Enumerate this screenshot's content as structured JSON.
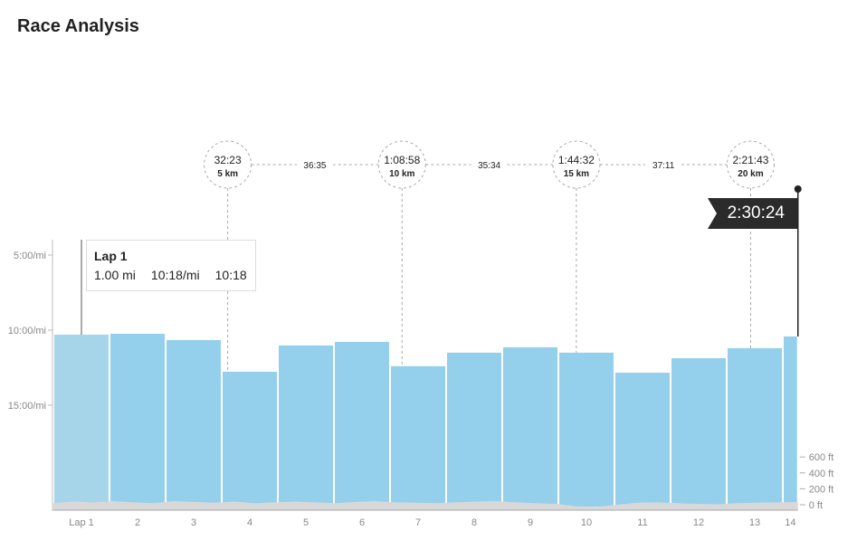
{
  "title": "Race Analysis",
  "tooltip": {
    "title": "Lap 1",
    "distance": "1.00 mi",
    "pace": "10:18/mi",
    "time": "10:18"
  },
  "finish_time": "2:30:24",
  "splits": [
    {
      "time": "32:23",
      "label": "5 km",
      "mi": 3.107
    },
    {
      "time": "1:08:58",
      "label": "10 km",
      "mi": 6.214
    },
    {
      "time": "1:44:32",
      "label": "15 km",
      "mi": 9.321
    },
    {
      "time": "2:21:43",
      "label": "20 km",
      "mi": 12.427
    }
  ],
  "segments": [
    "36:35",
    "35:34",
    "37:11"
  ],
  "chart_data": {
    "type": "bar",
    "title": "Race Analysis",
    "categories": [
      "Lap 1",
      "2",
      "3",
      "4",
      "5",
      "6",
      "7",
      "8",
      "9",
      "10",
      "11",
      "12",
      "13",
      "14"
    ],
    "lap_distance_mi": [
      1,
      1,
      1,
      1,
      1,
      1,
      1,
      1,
      1,
      1,
      1,
      1,
      1,
      0.27
    ],
    "pace_min_per_mi": [
      10.3,
      10.24,
      10.66,
      12.77,
      11.02,
      10.78,
      12.4,
      11.5,
      11.14,
      11.5,
      12.83,
      11.87,
      11.2,
      10.42
    ],
    "y_ticks": [
      "5:00/mi",
      "10:00/mi",
      "15:00/mi"
    ],
    "y_tick_values": [
      5,
      10,
      15
    ],
    "elevation_ticks": [
      "600 ft",
      "400 ft",
      "200 ft",
      "0 ft"
    ],
    "elevation_tick_values": [
      600,
      400,
      200,
      0
    ],
    "elevation_ft": [
      20,
      40,
      30,
      45,
      30,
      20,
      45,
      35,
      25,
      40,
      20,
      30,
      40,
      30,
      20,
      35,
      45,
      30,
      25,
      20,
      30,
      40,
      45,
      30,
      20,
      10,
      -20,
      -25,
      0,
      25,
      30,
      20,
      10,
      5,
      20,
      25,
      30,
      35
    ],
    "highlighted": "Lap 1",
    "colors": {
      "bar": "#94cfeb",
      "bar_highlight": "#a6d4e9",
      "elevation": "#d8d8d8"
    }
  }
}
